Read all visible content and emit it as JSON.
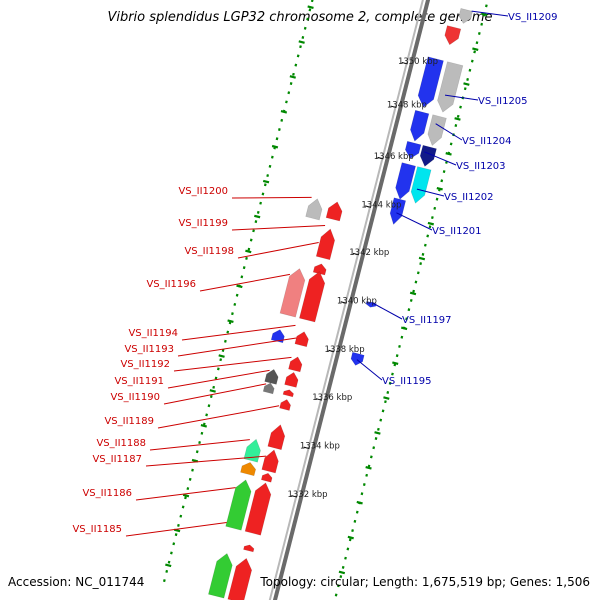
{
  "title": "Vibrio splendidus LGP32 chromosome 2, complete genome",
  "footer": {
    "accession": "Accession: NC_011744",
    "summary": "Topology: circular; Length: 1,675,519 bp; Genes: 1,506"
  },
  "ticks": [
    "1350 kbp",
    "1348 kbp",
    "1346 kbp",
    "1344 kbp",
    "1342 kbp",
    "1340 kbp",
    "1338 kbp",
    "1336 kbp",
    "1334 kbp",
    "1332 kbp"
  ],
  "genes_right": [
    "VS_II1209",
    "VS_II1205",
    "VS_II1204",
    "VS_II1203",
    "VS_II1202",
    "VS_II1201",
    "VS_II1197",
    "VS_II1195"
  ],
  "genes_left": [
    "VS_II1200",
    "VS_II1199",
    "VS_II1198",
    "VS_II1196",
    "VS_II1194",
    "VS_II1193",
    "VS_II1192",
    "VS_II1191",
    "VS_II1190",
    "VS_II1189",
    "VS_II1188",
    "VS_II1187",
    "VS_II1186",
    "VS_II1185"
  ],
  "colors": {
    "forward_genes": "#0000ee",
    "reverse_genes": "#ee0000",
    "backbone": "#888888",
    "dotted_track": "#008800",
    "label_right": "#0000aa",
    "label_left": "#cc0000"
  }
}
